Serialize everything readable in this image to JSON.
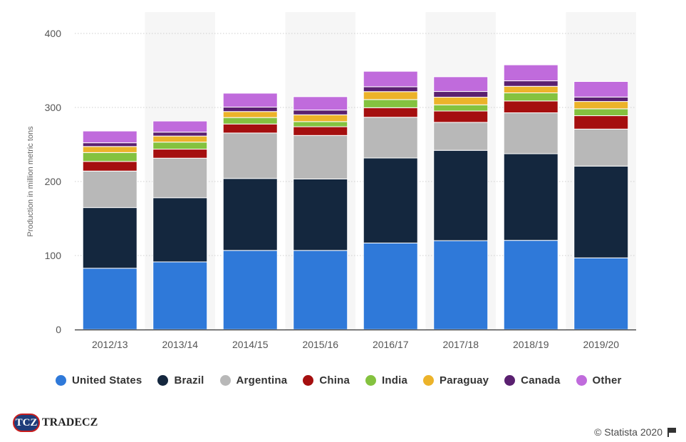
{
  "chart_data": {
    "type": "bar",
    "stacked": true,
    "title": "",
    "xlabel": "",
    "ylabel": "Production in million metric tons",
    "ylim": [
      0,
      400
    ],
    "yticks": [
      0,
      100,
      200,
      300,
      400
    ],
    "categories": [
      "2012/13",
      "2013/14",
      "2014/15",
      "2015/16",
      "2016/17",
      "2017/18",
      "2018/19",
      "2019/20"
    ],
    "series": [
      {
        "name": "United States",
        "color": "#2f79d9",
        "values": [
          82.8,
          91.4,
          106.9,
          106.9,
          116.9,
          120.1,
          120.5,
          96.8
        ]
      },
      {
        "name": "Brazil",
        "color": "#14273e",
        "values": [
          82.0,
          86.7,
          97.2,
          96.5,
          114.9,
          122.0,
          117.0,
          124.0
        ]
      },
      {
        "name": "Argentina",
        "color": "#b8b8b8",
        "values": [
          49.3,
          53.4,
          61.4,
          58.8,
          55.0,
          37.8,
          55.3,
          50.0
        ]
      },
      {
        "name": "China",
        "color": "#a50f0f",
        "values": [
          13.0,
          12.2,
          12.2,
          11.8,
          12.9,
          15.3,
          16.0,
          18.1
        ]
      },
      {
        "name": "India",
        "color": "#84c23f",
        "values": [
          12.0,
          9.5,
          8.7,
          6.9,
          11.0,
          8.4,
          10.9,
          9.3
        ]
      },
      {
        "name": "Paraguay",
        "color": "#ecb32a",
        "values": [
          8.2,
          8.2,
          8.1,
          9.2,
          10.7,
          10.3,
          8.9,
          9.9
        ]
      },
      {
        "name": "Canada",
        "color": "#5a2070",
        "values": [
          5.0,
          5.3,
          6.0,
          6.4,
          6.6,
          7.7,
          7.4,
          6.0
        ]
      },
      {
        "name": "Other",
        "color": "#c06bdc",
        "values": [
          15.9,
          15.0,
          18.8,
          18.1,
          20.9,
          19.9,
          21.6,
          21.0
        ]
      }
    ]
  },
  "branding": {
    "logo_badge": "TCZ",
    "logo_text": "TRADECZ",
    "credit": "© Statista 2020"
  }
}
